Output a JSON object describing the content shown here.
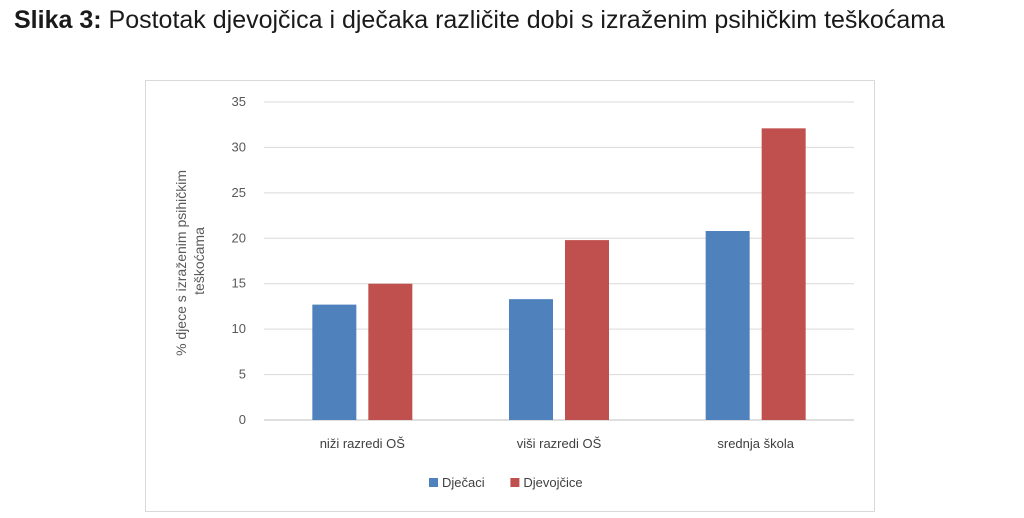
{
  "figure": {
    "label": "Slika 3:",
    "caption": "Postotak djevojčica i dječaka različite dobi s izraženim psihičkim teškoćama"
  },
  "chart_data": {
    "type": "bar",
    "categories": [
      "niži razredi OŠ",
      "viši razredi OŠ",
      "srednja škola"
    ],
    "series": [
      {
        "name": "Dječaci",
        "color": "#4f81bd",
        "values": [
          12.7,
          13.3,
          20.8
        ]
      },
      {
        "name": "Djevojčice",
        "color": "#c0504d",
        "values": [
          15.0,
          19.8,
          32.1
        ]
      }
    ],
    "ylabel_lines": [
      "% djece s izraženim psihičkim",
      "teškoćama"
    ],
    "xlabel": "",
    "ylim": [
      0,
      35
    ],
    "yticks": [
      0,
      5,
      10,
      15,
      20,
      25,
      30,
      35
    ],
    "grid": true,
    "legend_position": "bottom"
  }
}
